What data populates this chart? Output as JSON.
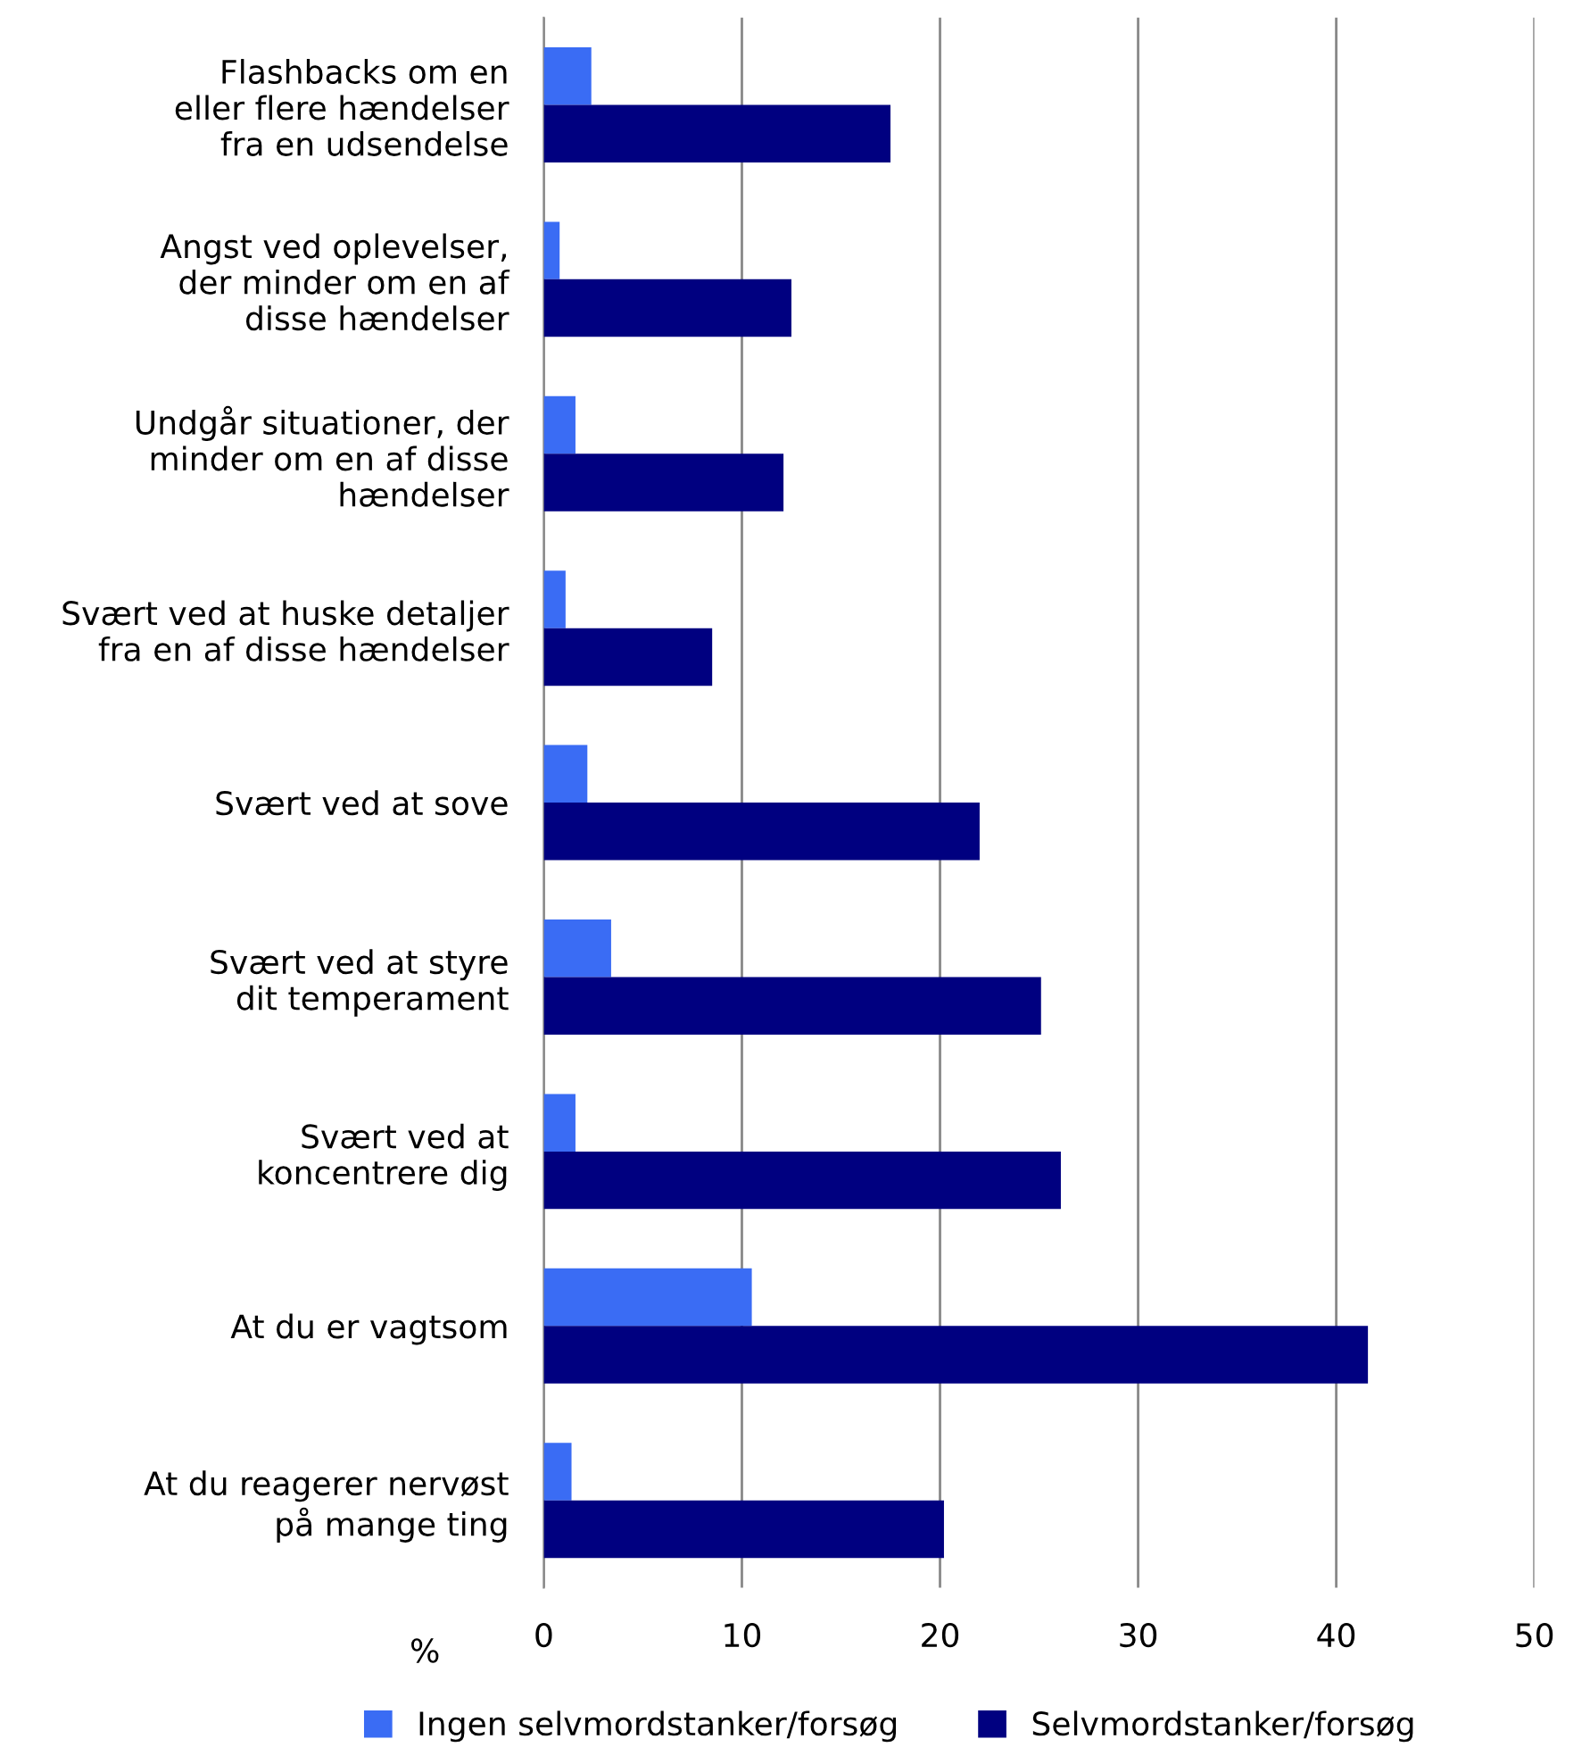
{
  "chart_data": {
    "type": "bar",
    "orientation": "horizontal",
    "xlabel": "%",
    "categories": [
      "Flashbacks om en\neller flere hændelser\nfra en udsendelse",
      "Angst ved oplevelser,\nder minder om en af\ndisse hændelser",
      "Undgår situationer, der\nminder om en af disse\nhændelser",
      "Svært ved at huske detaljer\nfra en af disse hændelser",
      "Svært ved at sove",
      "Svært ved at styre\ndit temperament",
      "Svært ved at\nkoncentrere dig",
      "At du er vagtsom",
      "At du reagerer nervøst\npå mange ting"
    ],
    "series": [
      {
        "name": "Ingen selvmordstanker/forsøg",
        "color": "#3a6cf4",
        "values": [
          2.4,
          0.8,
          1.6,
          1.1,
          2.2,
          3.4,
          1.6,
          10.5,
          1.4
        ]
      },
      {
        "name": "Selvmordstanker/forsøg",
        "color": "#000080",
        "values": [
          17.5,
          12.5,
          12.1,
          8.5,
          22.0,
          25.1,
          26.1,
          41.6,
          20.2
        ]
      }
    ],
    "xlim": [
      0,
      50
    ],
    "xticks": [
      0,
      10,
      20,
      30,
      40,
      50
    ],
    "grid": "x",
    "legend": "bottom"
  }
}
